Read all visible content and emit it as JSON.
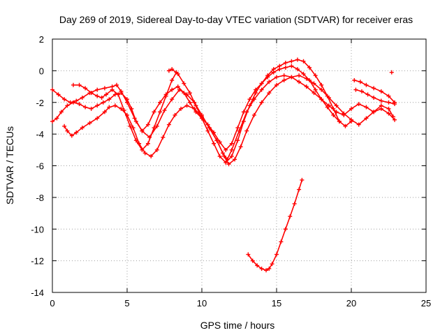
{
  "chart_data": {
    "type": "scatter",
    "title": "Day 269 of 2019, Sidereal Day-to-day VTEC variation (SDTVAR) for receiver eras",
    "xlabel": "GPS time / hours",
    "ylabel": "SDTVAR / TECUs",
    "xlim": [
      0,
      25
    ],
    "ylim": [
      -14,
      2
    ],
    "xticks": [
      0,
      5,
      10,
      15,
      20,
      25
    ],
    "yticks": [
      2,
      0,
      -2,
      -4,
      -6,
      -8,
      -10,
      -12,
      -14
    ],
    "grid": true,
    "marker": "+",
    "color": "#ff0000",
    "series": [
      {
        "name": "sat-track-1",
        "x": [
          0.0,
          0.4,
          0.8,
          1.2,
          1.6,
          2.0,
          2.5,
          3.0,
          3.5,
          4.0,
          4.3,
          4.6,
          5.0,
          5.5,
          6.0,
          6.5,
          7.0,
          7.5,
          8.0,
          8.5,
          9.0,
          9.5,
          10.0,
          10.5,
          11.0,
          11.4,
          11.7,
          12.0,
          12.5,
          13.0,
          13.5,
          14.0,
          14.5,
          15.0,
          15.5,
          16.0,
          16.5,
          17.0,
          17.5,
          18.0,
          18.5,
          19.0,
          19.5,
          20.0,
          20.5,
          21.0,
          21.5,
          22.0,
          22.5,
          22.8
        ],
        "y": [
          -1.2,
          -1.5,
          -1.8,
          -2.0,
          -1.9,
          -1.7,
          -1.4,
          -1.2,
          -1.1,
          -1.0,
          -0.9,
          -1.3,
          -2.0,
          -3.0,
          -3.8,
          -4.2,
          -3.5,
          -2.5,
          -1.8,
          -1.2,
          -1.5,
          -2.0,
          -2.8,
          -3.6,
          -4.4,
          -5.2,
          -5.6,
          -5.0,
          -3.8,
          -2.6,
          -1.8,
          -1.2,
          -0.7,
          -0.4,
          -0.3,
          -0.4,
          -0.7,
          -1.0,
          -1.4,
          -1.8,
          -2.2,
          -2.6,
          -2.8,
          -2.4,
          -2.1,
          -2.3,
          -2.6,
          -2.2,
          -2.4,
          -2.9
        ]
      },
      {
        "name": "sat-track-2",
        "x": [
          0.0,
          0.3,
          0.6,
          1.0,
          1.4,
          1.8,
          2.2,
          2.6,
          3.0,
          3.4,
          3.8,
          4.2,
          4.6,
          5.0,
          5.3,
          5.6,
          6.0,
          6.4,
          6.8,
          7.2,
          7.6,
          8.0,
          8.4,
          8.8,
          9.2,
          9.6,
          10.0,
          10.4,
          10.8,
          11.2,
          11.6,
          12.0,
          12.4,
          12.8,
          13.2,
          13.6,
          14.0,
          14.4,
          14.8,
          15.2,
          15.6,
          16.0,
          16.4,
          16.8,
          17.2,
          17.6,
          18.0,
          18.4,
          18.8,
          19.2,
          19.6,
          20.0
        ],
        "y": [
          -3.2,
          -3.0,
          -2.6,
          -2.2,
          -2.0,
          -2.1,
          -2.3,
          -2.4,
          -2.2,
          -2.0,
          -1.8,
          -1.5,
          -1.4,
          -1.8,
          -2.4,
          -3.2,
          -3.8,
          -3.4,
          -2.6,
          -2.0,
          -1.5,
          -1.2,
          -1.0,
          -1.4,
          -2.0,
          -2.6,
          -3.0,
          -3.4,
          -3.9,
          -4.5,
          -5.0,
          -4.6,
          -3.6,
          -2.6,
          -1.8,
          -1.2,
          -0.8,
          -0.4,
          -0.1,
          0.1,
          0.2,
          0.3,
          0.1,
          -0.2,
          -0.6,
          -1.2,
          -1.8,
          -2.3,
          -2.8,
          -3.2,
          -3.5,
          -3.2
        ]
      },
      {
        "name": "sat-track-3",
        "x": [
          0.8,
          1.0,
          1.3,
          1.6,
          2.0,
          2.5,
          3.0,
          3.5,
          3.8,
          4.2,
          4.6,
          5.0,
          5.4,
          5.8,
          6.2,
          6.6,
          7.0,
          7.4,
          7.8,
          8.2,
          8.6,
          9.0,
          9.5,
          10.0,
          10.5,
          11.0,
          11.5,
          11.8,
          12.2,
          12.6,
          13.0,
          13.5,
          14.0,
          14.5,
          15.0,
          15.5,
          16.0,
          16.5,
          17.0,
          17.5,
          18.0,
          18.5,
          19.0,
          19.5,
          20.0,
          20.5,
          21.0,
          21.5,
          22.0,
          22.5,
          22.9
        ],
        "y": [
          -3.5,
          -3.8,
          -4.1,
          -3.9,
          -3.6,
          -3.3,
          -3.0,
          -2.6,
          -2.3,
          -2.2,
          -2.4,
          -2.8,
          -3.6,
          -4.6,
          -5.2,
          -5.4,
          -5.0,
          -4.2,
          -3.4,
          -2.8,
          -2.4,
          -2.2,
          -2.4,
          -2.9,
          -3.6,
          -4.4,
          -5.4,
          -5.9,
          -5.6,
          -4.8,
          -3.8,
          -2.8,
          -2.0,
          -1.4,
          -0.9,
          -0.6,
          -0.4,
          -0.3,
          -0.5,
          -0.8,
          -1.2,
          -1.7,
          -2.2,
          -2.7,
          -3.1,
          -3.4,
          -3.0,
          -2.6,
          -2.4,
          -2.7,
          -3.1
        ]
      },
      {
        "name": "sat-track-4",
        "x": [
          1.4,
          1.8,
          2.2,
          2.6,
          3.0,
          3.3,
          3.6,
          4.0,
          4.4,
          4.8,
          5.2,
          5.6,
          6.0,
          6.4,
          6.8,
          7.2,
          7.6,
          8.0,
          8.3
        ],
        "y": [
          -0.9,
          -0.9,
          -1.1,
          -1.4,
          -1.6,
          -1.7,
          -1.5,
          -1.2,
          -1.5,
          -2.5,
          -3.5,
          -4.4,
          -5.0,
          -4.6,
          -3.6,
          -2.6,
          -1.6,
          -0.6,
          -0.1
        ]
      },
      {
        "name": "sat-track-5",
        "x": [
          7.8,
          8.0,
          8.4,
          8.8,
          9.2,
          9.6,
          10.0,
          10.4,
          10.8,
          11.2,
          11.6,
          12.0,
          12.4,
          12.8,
          13.2,
          13.6,
          14.0,
          14.4,
          14.8,
          15.2,
          15.6,
          16.0,
          16.4,
          16.8,
          17.2,
          17.6,
          18.0,
          18.4,
          18.8,
          19.2
        ],
        "y": [
          0.0,
          0.1,
          -0.2,
          -0.8,
          -1.4,
          -2.2,
          -3.0,
          -3.8,
          -4.6,
          -5.4,
          -5.8,
          -5.4,
          -4.4,
          -3.2,
          -2.2,
          -1.4,
          -0.8,
          -0.3,
          0.1,
          0.3,
          0.5,
          0.6,
          0.7,
          0.6,
          0.2,
          -0.3,
          -0.9,
          -1.6,
          -2.4,
          -3.2
        ]
      },
      {
        "name": "sat-track-6",
        "x": [
          20.2,
          20.6,
          21.0,
          21.5,
          22.0,
          22.5,
          22.9
        ],
        "y": [
          -0.6,
          -0.7,
          -0.9,
          -1.1,
          -1.3,
          -1.6,
          -2.0
        ]
      },
      {
        "name": "sat-track-7",
        "x": [
          20.3,
          20.7,
          21.1,
          21.5,
          22.0,
          22.5,
          22.9
        ],
        "y": [
          -1.2,
          -1.3,
          -1.5,
          -1.7,
          -1.9,
          -2.0,
          -2.1
        ]
      },
      {
        "name": "isolated-point",
        "x": [
          22.7
        ],
        "y": [
          -0.1
        ]
      },
      {
        "name": "sat-track-deep",
        "x": [
          13.1,
          13.4,
          13.7,
          14.0,
          14.3,
          14.5,
          14.7,
          15.0,
          15.3,
          15.6,
          15.9,
          16.2,
          16.5,
          16.7
        ],
        "y": [
          -11.6,
          -12.0,
          -12.3,
          -12.5,
          -12.6,
          -12.5,
          -12.2,
          -11.6,
          -10.8,
          -10.0,
          -9.2,
          -8.4,
          -7.5,
          -6.9
        ]
      }
    ]
  }
}
